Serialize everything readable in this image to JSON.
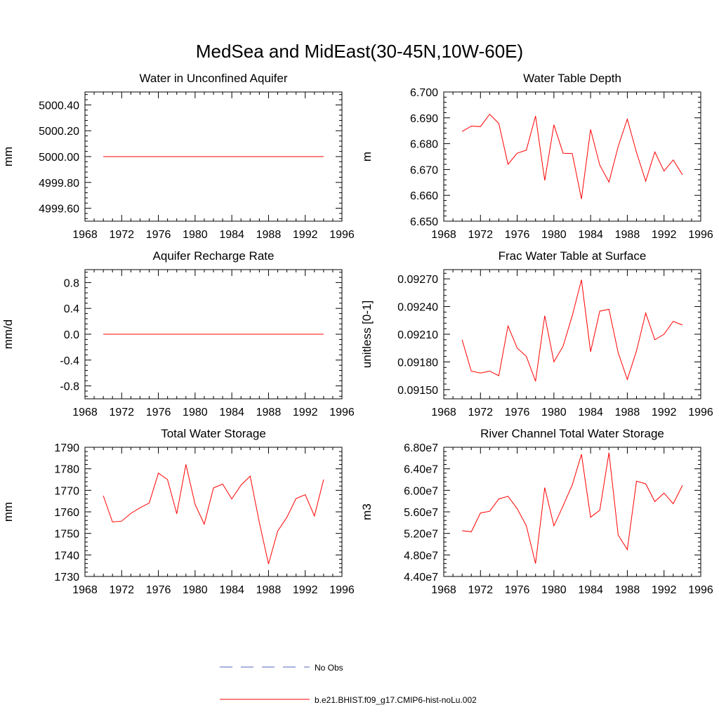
{
  "figure": {
    "title": "MedSea and MidEast(30-45N,10W-60E)"
  },
  "legend": [
    {
      "label": "No Obs",
      "color": "#5566bb",
      "dash": true
    },
    {
      "label": "b.e21.BHIST.f09_g17.CMIP6-hist-noLu.002",
      "color": "#ff0000",
      "dash": false
    }
  ],
  "chart_data": [
    {
      "type": "line",
      "title": "Water in Unconfined Aquifer",
      "ylabel": "mm",
      "xlim": [
        1968,
        1996
      ],
      "ylim": [
        4999.5,
        5000.5
      ],
      "xticks": [
        "1968",
        "1972",
        "1976",
        "1980",
        "1984",
        "1988",
        "1992",
        "1996"
      ],
      "yticks": [
        4999.6,
        4999.8,
        5000.0,
        5000.2,
        5000.4
      ],
      "ytick_labels": [
        "4999.60",
        "4999.80",
        "5000.00",
        "5000.20",
        "5000.40"
      ],
      "series": [
        {
          "color": "#ff0000",
          "x": [
            1970,
            1971,
            1972,
            1973,
            1974,
            1975,
            1976,
            1977,
            1978,
            1979,
            1980,
            1981,
            1982,
            1983,
            1984,
            1985,
            1986,
            1987,
            1988,
            1989,
            1990,
            1991,
            1992,
            1993,
            1994
          ],
          "values": [
            5000,
            5000,
            5000,
            5000,
            5000,
            5000,
            5000,
            5000,
            5000,
            5000,
            5000,
            5000,
            5000,
            5000,
            5000,
            5000,
            5000,
            5000,
            5000,
            5000,
            5000,
            5000,
            5000,
            5000,
            5000
          ]
        }
      ]
    },
    {
      "type": "line",
      "title": "Water Table Depth",
      "ylabel": "m",
      "xlim": [
        1968,
        1996
      ],
      "ylim": [
        6.65,
        6.7
      ],
      "xticks": [
        "1968",
        "1972",
        "1976",
        "1980",
        "1984",
        "1988",
        "1992",
        "1996"
      ],
      "yticks": [
        6.65,
        6.66,
        6.67,
        6.68,
        6.69,
        6.7
      ],
      "ytick_labels": [
        "6.650",
        "6.660",
        "6.670",
        "6.680",
        "6.690",
        "6.700"
      ],
      "series": [
        {
          "color": "#ff0000",
          "x": [
            1970,
            1971,
            1972,
            1973,
            1974,
            1975,
            1976,
            1977,
            1978,
            1979,
            1980,
            1981,
            1982,
            1983,
            1984,
            1985,
            1986,
            1987,
            1988,
            1989,
            1990,
            1991,
            1992,
            1993,
            1994
          ],
          "values": [
            6.6847,
            6.6868,
            6.6866,
            6.6914,
            6.6878,
            6.672,
            6.6763,
            6.6775,
            6.6907,
            6.6658,
            6.6873,
            6.6763,
            6.6762,
            6.6586,
            6.6855,
            6.6717,
            6.6651,
            6.6789,
            6.6895,
            6.6766,
            6.6655,
            6.6768,
            6.6694,
            6.6737,
            6.668
          ]
        }
      ]
    },
    {
      "type": "line",
      "title": "Aquifer Recharge Rate",
      "ylabel": "mm/d",
      "xlim": [
        1968,
        1996
      ],
      "ylim": [
        -1.0,
        1.0
      ],
      "xticks": [
        "1968",
        "1972",
        "1976",
        "1980",
        "1984",
        "1988",
        "1992",
        "1996"
      ],
      "yticks": [
        -0.8,
        -0.4,
        0.0,
        0.4,
        0.8
      ],
      "ytick_labels": [
        "-0.8",
        "-0.4",
        "0.0",
        "0.4",
        "0.8"
      ],
      "series": [
        {
          "color": "#ff0000",
          "x": [
            1970,
            1971,
            1972,
            1973,
            1974,
            1975,
            1976,
            1977,
            1978,
            1979,
            1980,
            1981,
            1982,
            1983,
            1984,
            1985,
            1986,
            1987,
            1988,
            1989,
            1990,
            1991,
            1992,
            1993,
            1994
          ],
          "values": [
            0,
            0,
            0,
            0,
            0,
            0,
            0,
            0,
            0,
            0,
            0,
            0,
            0,
            0,
            0,
            0,
            0,
            0,
            0,
            0,
            0,
            0,
            0,
            0,
            0
          ]
        }
      ]
    },
    {
      "type": "line",
      "title": "Frac Water Table at Surface",
      "ylabel": "unitless [0-1]",
      "xlim": [
        1968,
        1996
      ],
      "ylim": [
        0.0914,
        0.0928
      ],
      "xticks": [
        "1968",
        "1972",
        "1976",
        "1980",
        "1984",
        "1988",
        "1992",
        "1996"
      ],
      "yticks": [
        0.0915,
        0.0918,
        0.0921,
        0.0924,
        0.0927
      ],
      "ytick_labels": [
        "0.09150",
        "0.09180",
        "0.09210",
        "0.09240",
        "0.09270"
      ],
      "series": [
        {
          "color": "#ff0000",
          "x": [
            1970,
            1971,
            1972,
            1973,
            1974,
            1975,
            1976,
            1977,
            1978,
            1979,
            1980,
            1981,
            1982,
            1983,
            1984,
            1985,
            1986,
            1987,
            1988,
            1989,
            1990,
            1991,
            1992,
            1993,
            1994
          ],
          "values": [
            0.09204,
            0.0917,
            0.09168,
            0.0917,
            0.09165,
            0.09219,
            0.09195,
            0.09186,
            0.09159,
            0.0923,
            0.0918,
            0.09197,
            0.0923,
            0.09269,
            0.09191,
            0.09235,
            0.09237,
            0.0919,
            0.09161,
            0.09192,
            0.09233,
            0.09204,
            0.0921,
            0.09224,
            0.0922
          ]
        }
      ]
    },
    {
      "type": "line",
      "title": "Total Water Storage",
      "ylabel": "mm",
      "xlim": [
        1968,
        1996
      ],
      "ylim": [
        1730,
        1790
      ],
      "xticks": [
        "1968",
        "1972",
        "1976",
        "1980",
        "1984",
        "1988",
        "1992",
        "1996"
      ],
      "yticks": [
        1730,
        1740,
        1750,
        1760,
        1770,
        1780,
        1790
      ],
      "ytick_labels": [
        "1730",
        "1740",
        "1750",
        "1760",
        "1770",
        "1780",
        "1790"
      ],
      "series": [
        {
          "color": "#ff0000",
          "x": [
            1970,
            1971,
            1972,
            1973,
            1974,
            1975,
            1976,
            1977,
            1978,
            1979,
            1980,
            1981,
            1982,
            1983,
            1984,
            1985,
            1986,
            1987,
            1988,
            1989,
            1990,
            1991,
            1992,
            1993,
            1994
          ],
          "values": [
            1767.5,
            1755.3,
            1755.7,
            1759.3,
            1761.9,
            1764.1,
            1778.0,
            1775.0,
            1759.1,
            1782.0,
            1763.4,
            1754.3,
            1771.1,
            1772.9,
            1766.0,
            1772.4,
            1776.6,
            1755.0,
            1735.8,
            1751.1,
            1757.5,
            1766.2,
            1768.0,
            1758.1,
            1775.0
          ]
        }
      ]
    },
    {
      "type": "line",
      "title": "River Channel Total Water Storage",
      "ylabel": "m3",
      "xlim": [
        1968,
        1996
      ],
      "ylim": [
        44000000,
        68000000
      ],
      "xticks": [
        "1968",
        "1972",
        "1976",
        "1980",
        "1984",
        "1988",
        "1992",
        "1996"
      ],
      "yticks": [
        44000000,
        48000000,
        52000000,
        56000000,
        60000000,
        64000000,
        68000000
      ],
      "ytick_labels": [
        "4.40e7",
        "4.80e7",
        "5.20e7",
        "5.60e7",
        "6.00e7",
        "6.40e7",
        "6.80e7"
      ],
      "series": [
        {
          "color": "#ff0000",
          "x": [
            1970,
            1971,
            1972,
            1973,
            1974,
            1975,
            1976,
            1977,
            1978,
            1979,
            1980,
            1981,
            1982,
            1983,
            1984,
            1985,
            1986,
            1987,
            1988,
            1989,
            1990,
            1991,
            1992,
            1993,
            1994
          ],
          "values": [
            52500000,
            52300000,
            55800000,
            56100000,
            58400000,
            58900000,
            56600000,
            53400000,
            46400000,
            60500000,
            53400000,
            57100000,
            61000000,
            66700000,
            55000000,
            56300000,
            67000000,
            51700000,
            49000000,
            61700000,
            61200000,
            57900000,
            59500000,
            57500000,
            60900000
          ]
        }
      ]
    }
  ]
}
